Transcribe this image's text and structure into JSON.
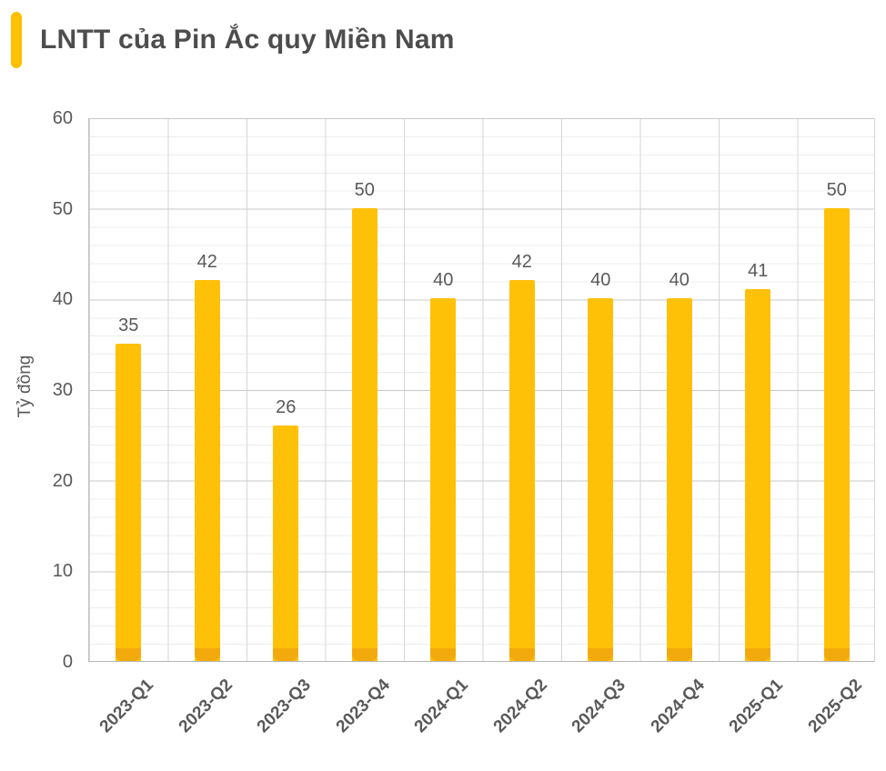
{
  "header": {
    "title": "LNTT của Pin Ắc quy Miền Nam",
    "accent_color": "#FFC000",
    "title_color": "#4D4D4D"
  },
  "chart_data": {
    "type": "bar",
    "title": "LNTT của Pin Ắc quy Miền Nam",
    "categories": [
      "2023-Q1",
      "2023-Q2",
      "2023-Q3",
      "2023-Q4",
      "2024-Q1",
      "2024-Q2",
      "2024-Q3",
      "2024-Q4",
      "2025-Q1",
      "2025-Q2"
    ],
    "values": [
      35,
      42,
      26,
      50,
      40,
      42,
      40,
      40,
      41,
      50
    ],
    "data_labels": [
      "35",
      "42",
      "26",
      "50",
      "40",
      "42",
      "40",
      "40",
      "41",
      "50"
    ],
    "xlabel": "",
    "ylabel": "Tỷ đồng",
    "ylim": [
      0,
      60
    ],
    "y_ticks": [
      "0",
      "10",
      "20",
      "30",
      "40",
      "50",
      "60"
    ],
    "minor_grid_step": 2,
    "grid": true,
    "legend_position": "none",
    "bar_color": "#FFC008",
    "bar_base_color": "#F2A90B",
    "text_color": "#595959"
  }
}
